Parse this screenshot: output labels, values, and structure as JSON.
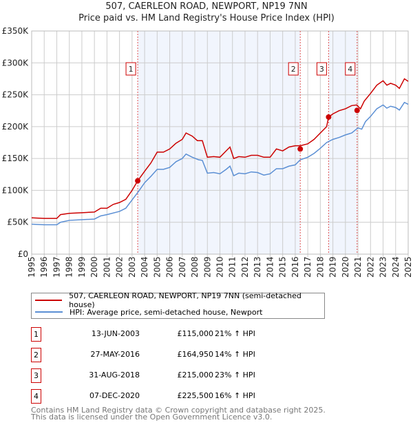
{
  "title": "507, CAERLEON ROAD, NEWPORT, NP19 7NN",
  "subtitle": "Price paid vs. HM Land Registry's House Price Index (HPI)",
  "chart_data": {
    "type": "line",
    "xlim": [
      1995,
      2025
    ],
    "ylim": [
      0,
      350000
    ],
    "yticks": [
      0,
      50000,
      100000,
      150000,
      200000,
      250000,
      300000,
      350000
    ],
    "ytick_labels": [
      "£0",
      "£50K",
      "£100K",
      "£150K",
      "£200K",
      "£250K",
      "£300K",
      "£350K"
    ],
    "xticks": [
      "1995",
      "1996",
      "1997",
      "1998",
      "1999",
      "2000",
      "2001",
      "2002",
      "2003",
      "2004",
      "2005",
      "2006",
      "2007",
      "2008",
      "2009",
      "2010",
      "2011",
      "2012",
      "2013",
      "2014",
      "2015",
      "2016",
      "2017",
      "2018",
      "2019",
      "2020",
      "2021",
      "2022",
      "2023",
      "2024",
      "2025"
    ],
    "grid": true,
    "series": [
      {
        "name": "507, CAERLEON ROAD, NEWPORT, NP19 7NN (semi-detached house)",
        "color": "#cc0000",
        "x": [
          1995,
          1996,
          1997,
          1997.3,
          1998,
          1999,
          2000,
          2000.5,
          2001,
          2001.5,
          2002,
          2002.5,
          2003,
          2003.45,
          2004,
          2004.5,
          2005,
          2005.5,
          2006,
          2006.5,
          2007,
          2007.3,
          2007.8,
          2008.2,
          2008.6,
          2009,
          2009.5,
          2010,
          2010.5,
          2010.8,
          2011.1,
          2011.5,
          2012,
          2012.5,
          2013,
          2013.5,
          2014,
          2014.5,
          2015,
          2015.5,
          2016,
          2016.4,
          2017,
          2017.5,
          2018,
          2018.5,
          2018.66,
          2019,
          2019.5,
          2020,
          2020.5,
          2020.9,
          2021.2,
          2021.5,
          2022,
          2022.5,
          2023,
          2023.3,
          2023.6,
          2024,
          2024.3,
          2024.7,
          2025
        ],
        "y": [
          57,
          56,
          56,
          62,
          64,
          65,
          66,
          72,
          72,
          78,
          81,
          86,
          100,
          115,
          130,
          143,
          160,
          160,
          165,
          174,
          180,
          190,
          185,
          178,
          178,
          152,
          153,
          152,
          162,
          168,
          150,
          153,
          152,
          155,
          155,
          152,
          152,
          165,
          162,
          168,
          170,
          170,
          173,
          180,
          190,
          200,
          215,
          220,
          225,
          228,
          233,
          234,
          228,
          240,
          252,
          265,
          272,
          265,
          268,
          265,
          260,
          275,
          271
        ]
      },
      {
        "name": "HPI: Average price, semi-detached house, Newport",
        "color": "#5b8fd4",
        "x": [
          1995,
          1996,
          1997,
          1997.3,
          1998,
          1999,
          2000,
          2000.5,
          2001,
          2002,
          2002.5,
          2003,
          2003.5,
          2004,
          2004.5,
          2005,
          2005.5,
          2006,
          2006.5,
          2007,
          2007.3,
          2007.8,
          2008.3,
          2008.6,
          2009,
          2009.5,
          2010,
          2010.5,
          2010.8,
          2011.1,
          2011.5,
          2012,
          2012.5,
          2013,
          2013.5,
          2014,
          2014.5,
          2015,
          2015.5,
          2016,
          2016.4,
          2017,
          2017.5,
          2018,
          2018.5,
          2019,
          2019.5,
          2020,
          2020.5,
          2021,
          2021.3,
          2021.6,
          2022,
          2022.5,
          2023,
          2023.3,
          2023.6,
          2024,
          2024.3,
          2024.7,
          2025
        ],
        "y": [
          47,
          46,
          46,
          50,
          53,
          54,
          55,
          60,
          62,
          67,
          72,
          85,
          98,
          112,
          122,
          133,
          133,
          136,
          145,
          150,
          157,
          152,
          148,
          147,
          127,
          128,
          126,
          133,
          138,
          123,
          127,
          126,
          129,
          128,
          124,
          126,
          134,
          134,
          138,
          140,
          148,
          152,
          158,
          166,
          175,
          180,
          183,
          187,
          190,
          198,
          196,
          208,
          216,
          228,
          234,
          229,
          232,
          230,
          226,
          238,
          235
        ]
      }
    ],
    "y_units": "thousands GBP",
    "sales": [
      {
        "label": "1",
        "x": 2003.45,
        "price": 115000,
        "date": "13-JUN-2003",
        "price_text": "£115,000",
        "hpi_text": "21% ↑ HPI"
      },
      {
        "label": "2",
        "x": 2016.4,
        "price": 164950,
        "date": "27-MAY-2016",
        "price_text": "£164,950",
        "hpi_text": "14% ↑ HPI"
      },
      {
        "label": "3",
        "x": 2018.66,
        "price": 215000,
        "date": "31-AUG-2018",
        "price_text": "£215,000",
        "hpi_text": "23% ↑ HPI"
      },
      {
        "label": "4",
        "x": 2020.93,
        "price": 225500,
        "date": "07-DEC-2020",
        "price_text": "£225,500",
        "hpi_text": "16% ↑ HPI"
      }
    ],
    "shaded_ranges": [
      [
        2003.45,
        2016.4
      ],
      [
        2018.66,
        2020.93
      ]
    ],
    "legend_position": "below"
  },
  "footer": [
    "Contains HM Land Registry data © Crown copyright and database right 2025.",
    "This data is licensed under the Open Government Licence v3.0."
  ]
}
